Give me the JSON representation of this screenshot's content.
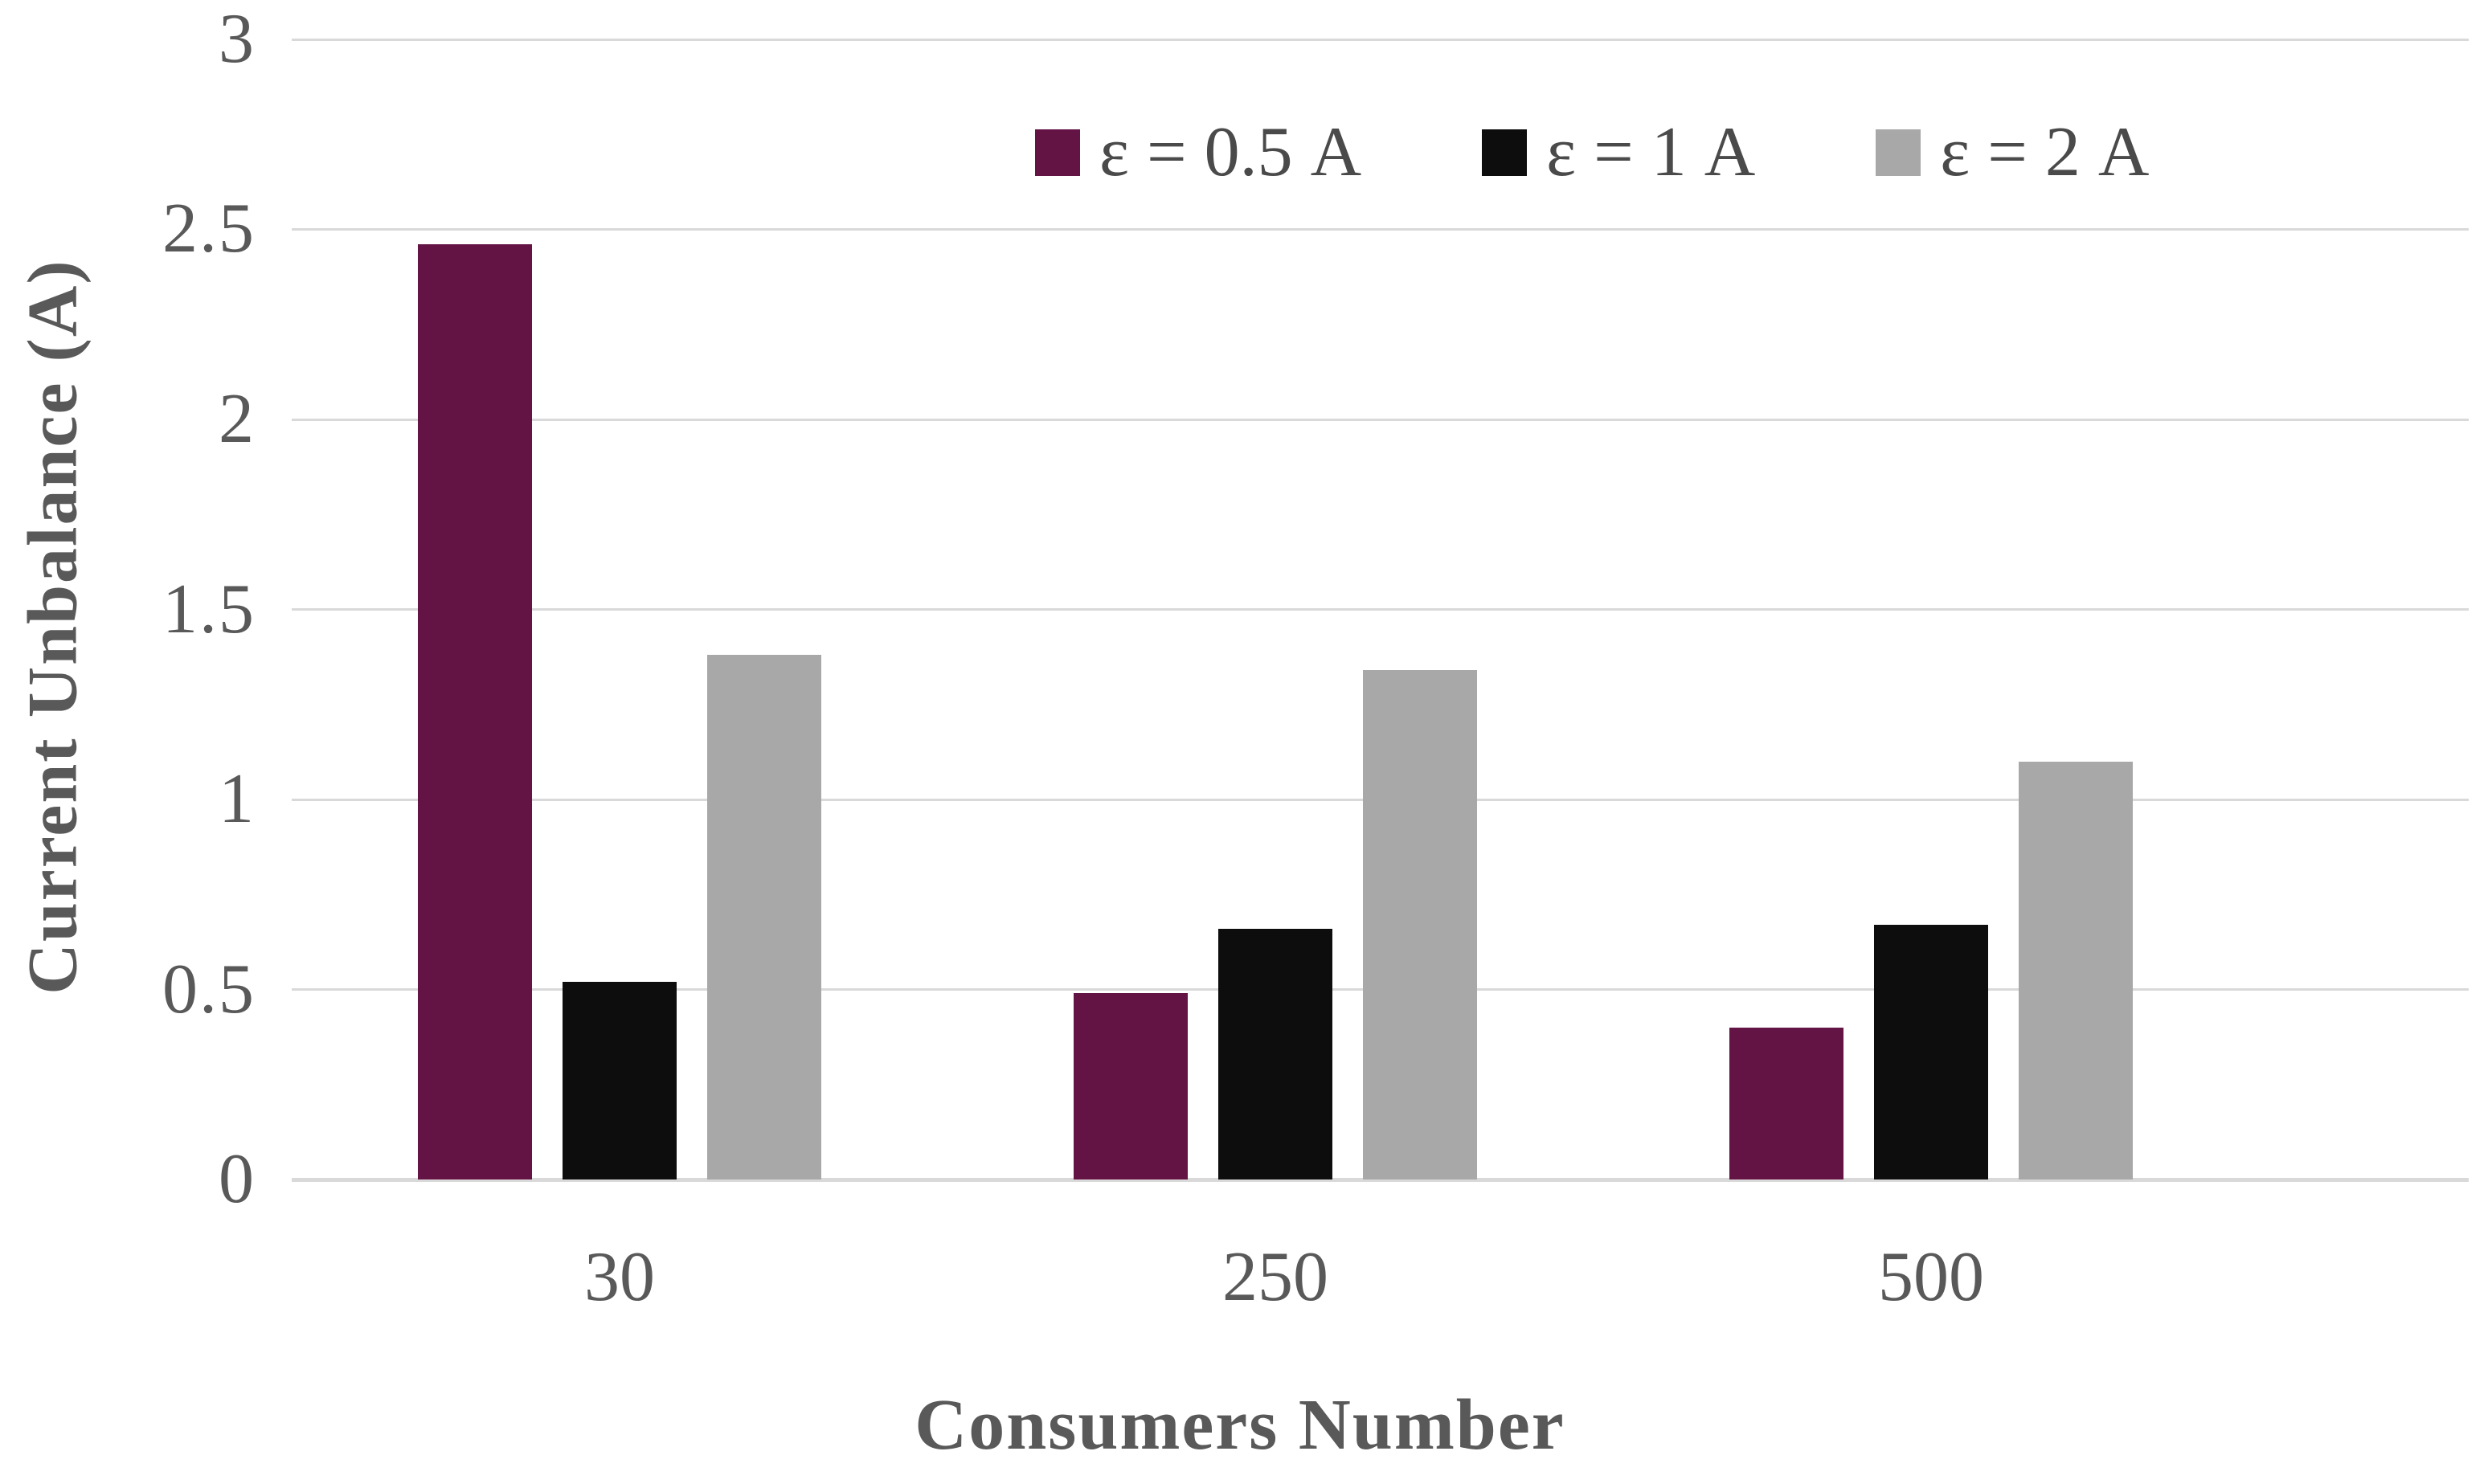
{
  "figure": {
    "background": "#ffffff"
  },
  "chart_data": {
    "type": "bar",
    "title": "",
    "categories": [
      "30",
      "250",
      "500"
    ],
    "series": [
      {
        "name": "ε = 0.5 A",
        "key": "eps-0-5",
        "color": "#641345",
        "values": [
          2.46,
          0.49,
          0.4
        ]
      },
      {
        "name": "ε = 1 A",
        "key": "eps-1",
        "color": "#0d0d0d",
        "values": [
          0.52,
          0.66,
          0.67
        ]
      },
      {
        "name": "ε = 2 A",
        "key": "eps-2",
        "color": "#a8a8a8",
        "values": [
          1.38,
          1.34,
          1.1
        ]
      }
    ],
    "xlabel": "Consumers Number",
    "ylabel": "Current Unbalance (A)",
    "ylim": [
      0,
      3
    ],
    "yticks": [
      "0",
      "0.5",
      "1",
      "1.5",
      "2",
      "2.5",
      "3"
    ],
    "ytick_values": [
      0,
      0.5,
      1,
      1.5,
      2,
      2.5,
      3
    ],
    "grid": true,
    "gridline_color": "#d9d9d9",
    "tick_label_color": "#595959",
    "axis_title_color": "#595959",
    "legend_text_color": "#4a4a4a",
    "legend_position": "top-center"
  }
}
